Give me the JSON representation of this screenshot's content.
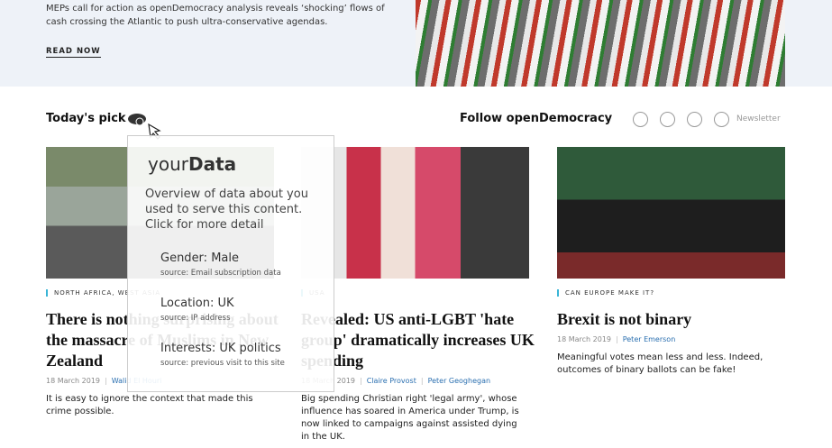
{
  "hero": {
    "text": "MEPs call for action as openDemocracy analysis reveals ‘shocking’ flows of cash crossing the Atlantic to push ultra-conservative agendas.",
    "link": "READ NOW"
  },
  "section": {
    "todays_pick": "Today's pick",
    "follow": "Follow openDemocracy",
    "newsletter": "Newsletter"
  },
  "articles": [
    {
      "tag": "North Africa, West Asia",
      "title": "There is nothing surprising about the massacre of Muslims in New Zealand",
      "date": "18 March 2019",
      "authors": [
        "Walid El Houri"
      ],
      "blurb": "It is easy to ignore the context that made this crime possible."
    },
    {
      "tag": "USA",
      "title": "Revealed: US anti-LGBT 'hate group' dramatically increases UK spending",
      "date": "18 March 2019",
      "authors": [
        "Claire Provost",
        "Peter Geoghegan"
      ],
      "blurb": "Big spending Christian right 'legal army', whose influence has soared in America under Trump, is now linked to campaigns against assisted dying in the UK."
    },
    {
      "tag": "Can Europe make it?",
      "title": "Brexit is not binary",
      "date": "18 March 2019",
      "authors": [
        "Peter Emerson"
      ],
      "blurb": "Meaningful votes mean less and less. Indeed, outcomes of binary ballots can be fake!"
    }
  ],
  "popup": {
    "title_light": "your",
    "title_bold": "Data",
    "description": "Overview of data about you used to serve this content. Click for more detail",
    "items": [
      {
        "label": "Gender: Male",
        "source": "source: Email subscription data"
      },
      {
        "label": "Location: UK",
        "source": "source: IP address"
      },
      {
        "label": "Interests: UK politics",
        "source": "source: previous visit to this site"
      }
    ]
  }
}
